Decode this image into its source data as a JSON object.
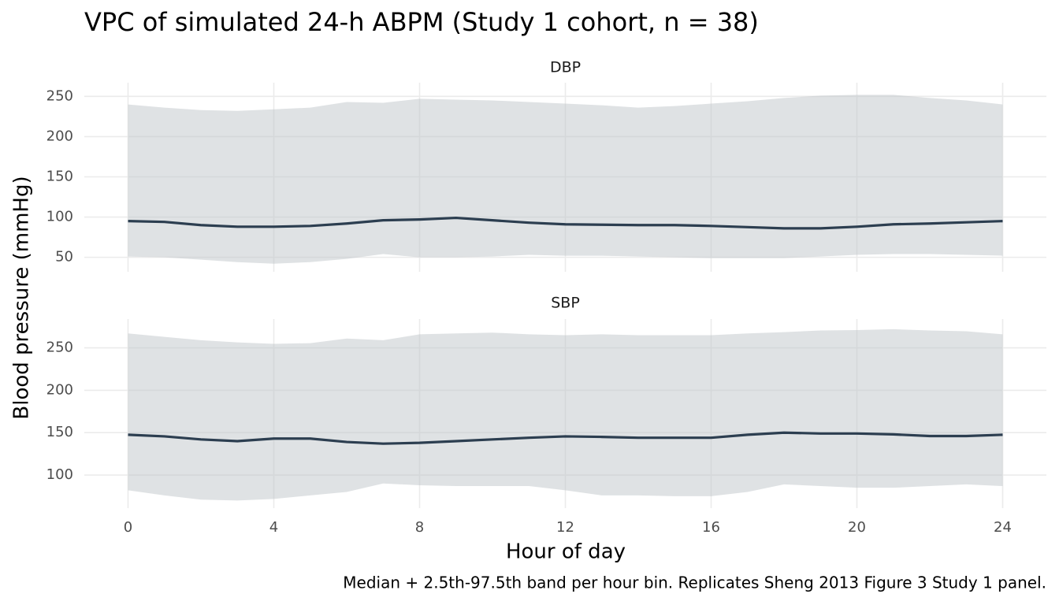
{
  "title": "VPC of simulated 24-h ABPM (Study 1 cohort, n = 38)",
  "xlabel": "Hour of day",
  "ylabel": "Blood pressure (mmHg)",
  "caption": "Median + 2.5th-97.5th band per hour bin. Replicates Sheng 2013 Figure 3 Study 1 panel.",
  "chart_data": [
    {
      "type": "line",
      "title": "DBP",
      "x": [
        0,
        1,
        2,
        3,
        4,
        5,
        6,
        7,
        8,
        9,
        10,
        11,
        12,
        13,
        14,
        15,
        16,
        17,
        18,
        19,
        20,
        21,
        22,
        23,
        24
      ],
      "median": [
        95,
        94,
        90,
        88,
        88,
        89,
        92,
        96,
        97,
        99,
        96,
        93,
        91,
        90.5,
        90,
        90,
        89,
        87.5,
        86,
        86,
        88,
        91,
        92,
        93.5,
        95
      ],
      "upper": [
        240,
        236,
        233,
        232,
        234,
        236,
        243,
        242,
        247,
        246,
        245,
        243,
        241,
        239,
        236,
        238,
        241,
        244,
        248,
        251,
        252,
        252,
        248,
        245,
        240
      ],
      "lower": [
        51,
        50,
        47,
        44,
        42,
        44,
        48,
        54,
        50,
        50,
        51,
        53,
        52,
        52,
        51,
        50,
        49,
        49,
        49,
        51,
        53,
        54,
        54,
        53,
        52
      ],
      "line_color": "#2c3e50",
      "band_color": "#bdc3c7",
      "xlim": [
        -1.2,
        25.2
      ],
      "xticks": [
        0,
        4,
        8,
        12,
        16,
        20,
        24
      ],
      "ylim": [
        32,
        267
      ],
      "yticks": [
        50,
        100,
        150,
        200,
        250
      ],
      "grid": true
    },
    {
      "type": "line",
      "title": "SBP",
      "x": [
        0,
        1,
        2,
        3,
        4,
        5,
        6,
        7,
        8,
        9,
        10,
        11,
        12,
        13,
        14,
        15,
        16,
        17,
        18,
        19,
        20,
        21,
        22,
        23,
        24
      ],
      "median": [
        147.5,
        145.6,
        142,
        140,
        143,
        143,
        139,
        137,
        138,
        140,
        142,
        144,
        145.6,
        145,
        144,
        144,
        144,
        147.5,
        150,
        149,
        149,
        148,
        146,
        146,
        147.5
      ],
      "upper": [
        267,
        263,
        259,
        256.5,
        254.7,
        255.6,
        261,
        259,
        266,
        267,
        268,
        266,
        265,
        266,
        265,
        265,
        265,
        267,
        268.6,
        270.5,
        271,
        272,
        270.5,
        269.6,
        266
      ],
      "lower": [
        82,
        76,
        71,
        70,
        71.8,
        76,
        80,
        90,
        88,
        87,
        87,
        87,
        82,
        76,
        76,
        75,
        75,
        80,
        89,
        87,
        85,
        85,
        87,
        89,
        87
      ],
      "line_color": "#2c3e50",
      "band_color": "#bdc3c7",
      "xlim": [
        -1.2,
        25.2
      ],
      "xticks": [
        0,
        4,
        8,
        12,
        16,
        20,
        24
      ],
      "ylim": [
        61,
        284
      ],
      "yticks": [
        100,
        150,
        200,
        250
      ],
      "grid": true
    }
  ]
}
